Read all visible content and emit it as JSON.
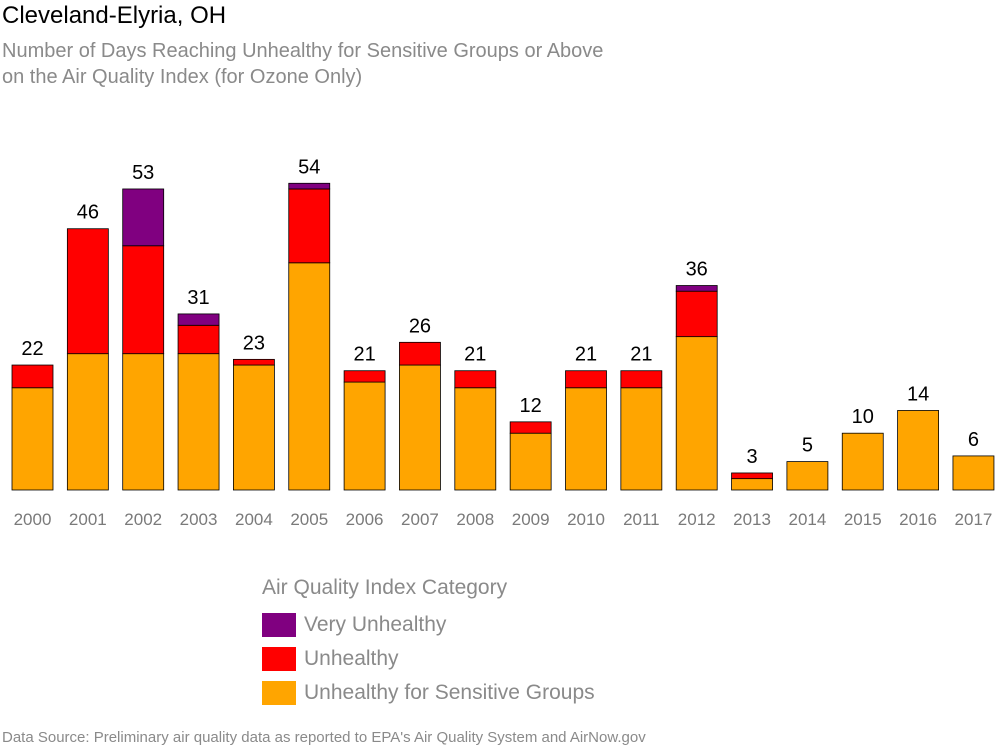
{
  "title": "Cleveland-Elyria, OH",
  "subtitle_line1": "Number of Days Reaching Unhealthy for Sensitive Groups or Above",
  "subtitle_line2": "on the Air Quality Index (for Ozone Only)",
  "legend": {
    "title": "Air Quality Index Category",
    "items": [
      {
        "label": "Very Unhealthy",
        "color": "#800080"
      },
      {
        "label": "Unhealthy",
        "color": "#ff0000"
      },
      {
        "label": "Unhealthy for Sensitive Groups",
        "color": "#ffa500"
      }
    ]
  },
  "source": "Data Source: Preliminary air quality data as reported to EPA's Air Quality System and AirNow.gov",
  "chart_data": {
    "type": "bar",
    "stacked": true,
    "categories": [
      "2000",
      "2001",
      "2002",
      "2003",
      "2004",
      "2005",
      "2006",
      "2007",
      "2008",
      "2009",
      "2010",
      "2011",
      "2012",
      "2013",
      "2014",
      "2015",
      "2016",
      "2017"
    ],
    "series": [
      {
        "name": "Unhealthy for Sensitive Groups",
        "color": "#ffa500",
        "values": [
          18,
          24,
          24,
          24,
          22,
          40,
          19,
          22,
          18,
          10,
          18,
          18,
          27,
          2,
          5,
          10,
          14,
          6
        ]
      },
      {
        "name": "Unhealthy",
        "color": "#ff0000",
        "values": [
          4,
          22,
          19,
          5,
          1,
          13,
          2,
          4,
          3,
          2,
          3,
          3,
          8,
          1,
          0,
          0,
          0,
          0
        ]
      },
      {
        "name": "Very Unhealthy",
        "color": "#800080",
        "values": [
          0,
          0,
          10,
          2,
          0,
          1,
          0,
          0,
          0,
          0,
          0,
          0,
          1,
          0,
          0,
          0,
          0,
          0
        ]
      }
    ],
    "totals": [
      22,
      46,
      53,
      31,
      23,
      54,
      21,
      26,
      21,
      12,
      21,
      21,
      36,
      3,
      5,
      10,
      14,
      6
    ],
    "ylim": [
      0,
      54
    ]
  }
}
